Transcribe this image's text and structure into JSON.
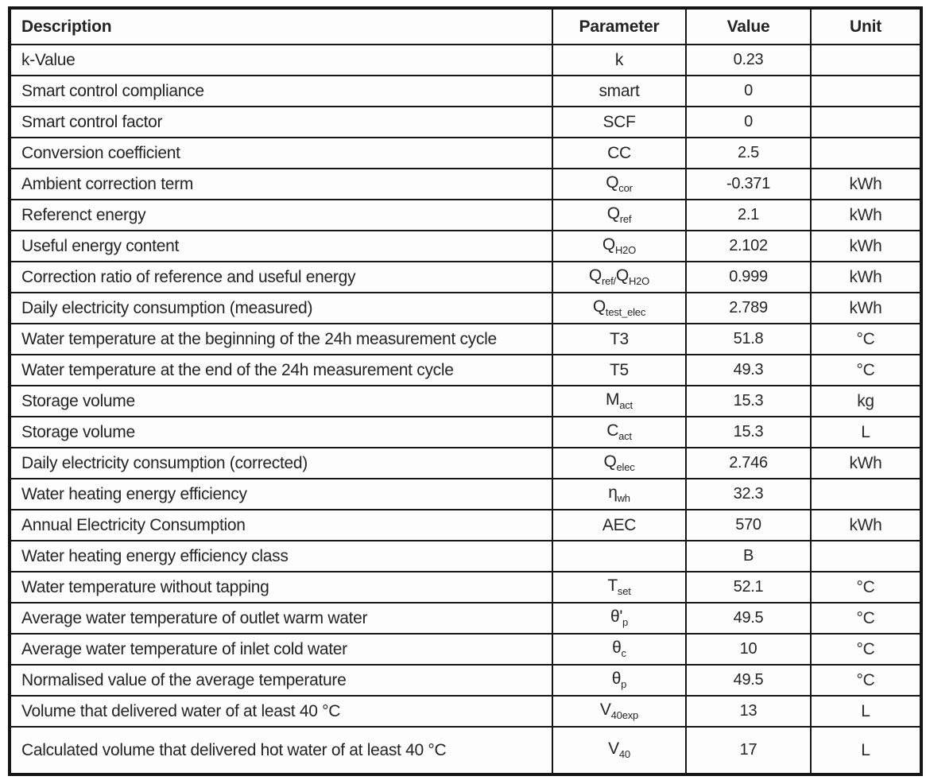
{
  "colors": {
    "border": "#161616",
    "text": "#242424",
    "background": "#fdfdfd"
  },
  "table": {
    "headers": [
      "Description",
      "Parameter",
      "Value",
      "Unit"
    ],
    "rows": [
      {
        "description": "k-Value",
        "param": [
          {
            "t": "k"
          }
        ],
        "value": "0.23",
        "unit": ""
      },
      {
        "description": "Smart control compliance",
        "param": [
          {
            "t": "smart"
          }
        ],
        "value": "0",
        "unit": ""
      },
      {
        "description": "Smart control factor",
        "param": [
          {
            "t": "SCF"
          }
        ],
        "value": "0",
        "unit": ""
      },
      {
        "description": "Conversion coefficient",
        "param": [
          {
            "t": "CC"
          }
        ],
        "value": "2.5",
        "unit": ""
      },
      {
        "description": "Ambient correction term",
        "param": [
          {
            "t": "Q"
          },
          {
            "s": "cor"
          }
        ],
        "value": "-0.371",
        "unit": "kWh"
      },
      {
        "description": "Referenct energy",
        "param": [
          {
            "t": "Q"
          },
          {
            "s": "ref"
          }
        ],
        "value": "2.1",
        "unit": "kWh"
      },
      {
        "description": "Useful energy content",
        "param": [
          {
            "t": "Q"
          },
          {
            "s": "H2O"
          }
        ],
        "value": "2.102",
        "unit": "kWh"
      },
      {
        "description": "Correction ratio of reference and useful energy",
        "param": [
          {
            "t": "Q"
          },
          {
            "s": "ref/"
          },
          {
            "t": "Q"
          },
          {
            "s": "H2O"
          }
        ],
        "value": "0.999",
        "unit": "kWh"
      },
      {
        "description": "Daily electricity consumption (measured)",
        "param": [
          {
            "t": "Q"
          },
          {
            "s": "test_elec"
          }
        ],
        "value": "2.789",
        "unit": "kWh"
      },
      {
        "description": "Water temperature at the beginning of the 24h measurement cycle",
        "param": [
          {
            "t": "T3"
          }
        ],
        "value": "51.8",
        "unit": "°C"
      },
      {
        "description": "Water temperature at the end of the 24h measurement cycle",
        "param": [
          {
            "t": "T5"
          }
        ],
        "value": "49.3",
        "unit": "°C"
      },
      {
        "description": "Storage volume",
        "param": [
          {
            "t": "M"
          },
          {
            "s": "act"
          }
        ],
        "value": "15.3",
        "unit": "kg"
      },
      {
        "description": "Storage volume",
        "param": [
          {
            "t": "C"
          },
          {
            "s": "act"
          }
        ],
        "value": "15.3",
        "unit": "L"
      },
      {
        "description": "Daily electricity consumption (corrected)",
        "param": [
          {
            "t": "Q"
          },
          {
            "s": "elec"
          }
        ],
        "value": "2.746",
        "unit": "kWh"
      },
      {
        "description": "Water heating energy efficiency",
        "param": [
          {
            "t": "η"
          },
          {
            "s": "wh"
          }
        ],
        "value": "32.3",
        "unit": ""
      },
      {
        "description": "Annual Electricity Consumption",
        "param": [
          {
            "t": "AEC"
          }
        ],
        "value": "570",
        "unit": "kWh"
      },
      {
        "description": "Water heating energy efficiency class",
        "param": [],
        "value": "B",
        "unit": ""
      },
      {
        "description": "Water temperature without tapping",
        "param": [
          {
            "t": "T"
          },
          {
            "s": "set"
          }
        ],
        "value": "52.1",
        "unit": "°C"
      },
      {
        "description": "Average water temperature of outlet warm water",
        "param": [
          {
            "t": "θ'"
          },
          {
            "s": "p"
          }
        ],
        "value": "49.5",
        "unit": "°C"
      },
      {
        "description": "Average water temperature of inlet cold water",
        "param": [
          {
            "t": "θ"
          },
          {
            "s": "c"
          }
        ],
        "value": "10",
        "unit": "°C"
      },
      {
        "description": "Normalised value of the average temperature",
        "param": [
          {
            "t": "θ"
          },
          {
            "s": "p"
          }
        ],
        "value": "49.5",
        "unit": "°C"
      },
      {
        "description": "Volume that delivered water of at least 40 °C",
        "param": [
          {
            "t": "V"
          },
          {
            "s": "40exp"
          }
        ],
        "value": "13",
        "unit": "L"
      },
      {
        "description": "Calculated volume that delivered hot water of at least 40 °C",
        "param": [
          {
            "t": "V"
          },
          {
            "s": "40"
          }
        ],
        "value": "17",
        "unit": "L"
      }
    ]
  }
}
